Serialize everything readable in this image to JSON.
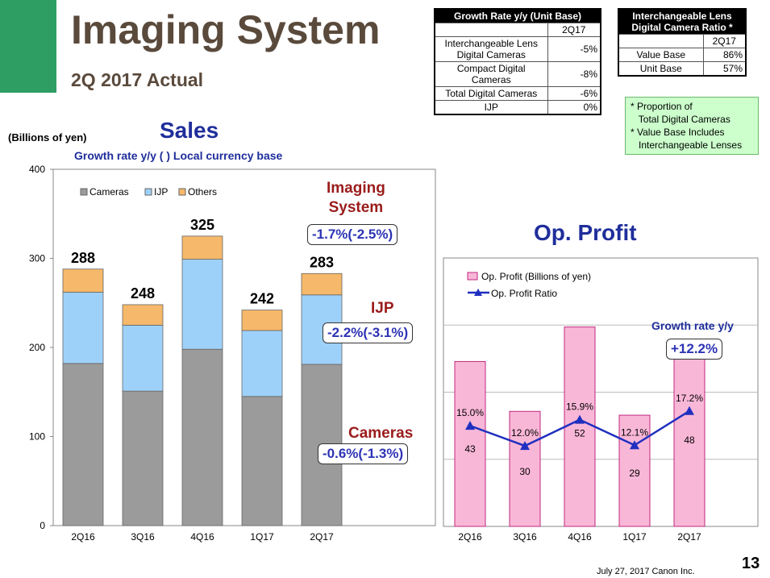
{
  "header": {
    "title": "Imaging System",
    "subtitle": "2Q 2017 Actual"
  },
  "growth_table": {
    "title": "Growth Rate y/y  (Unit Base)",
    "period": "2Q17",
    "rows": [
      {
        "label_lines": [
          "Interchangeable Lens",
          "Digital Cameras"
        ],
        "value": "-5%"
      },
      {
        "label_lines": [
          "Compact Digital",
          "Cameras"
        ],
        "value": "-8%"
      },
      {
        "label_lines": [
          "Total Digital Cameras"
        ],
        "value": "-6%"
      },
      {
        "label_lines": [
          "IJP"
        ],
        "value": "0%"
      }
    ]
  },
  "ratio_table": {
    "title_lines": [
      "Interchangeable Lens",
      "Digital Camera Ratio *"
    ],
    "period": "2Q17",
    "rows": [
      {
        "label": "Value Base",
        "value": "86%"
      },
      {
        "label": "Unit Base",
        "value": "57%"
      }
    ]
  },
  "notes": [
    "* Proportion of",
    "   Total Digital Cameras",
    "* Value Base Includes",
    "   Interchangeable Lenses"
  ],
  "sales_section": {
    "title": "Sales",
    "unit": "(Billions of yen)",
    "growth_note": "Growth rate y/y  ( ) Local currency base",
    "callouts": {
      "imaging_label_lines": [
        "Imaging",
        "System"
      ],
      "imaging_value": "-1.7%(-2.5%)",
      "ijp_label": "IJP",
      "ijp_value": "-2.2%(-3.1%)",
      "cameras_label": "Cameras",
      "cameras_value": "-0.6%(-1.3%)"
    }
  },
  "profit_section": {
    "title": "Op. Profit",
    "growth_label": "Growth rate y/y",
    "growth_value": "+12.2%"
  },
  "colors": {
    "cameras": "#9b9b9b",
    "ijp": "#9ed1fa",
    "others": "#f6b86a",
    "op_profit": "#f9b7d8",
    "op_ratio": "#1f2fbf"
  },
  "chart_data": [
    {
      "type": "bar",
      "stacked": true,
      "categories": [
        "2Q16",
        "3Q16",
        "4Q16",
        "1Q17",
        "2Q17"
      ],
      "series": [
        {
          "name": "Cameras",
          "values": [
            182,
            151,
            198,
            145,
            181
          ]
        },
        {
          "name": "IJP",
          "values": [
            80,
            74,
            101,
            74,
            78
          ]
        },
        {
          "name": "Others",
          "values": [
            26,
            23,
            26,
            23,
            24
          ]
        }
      ],
      "totals": [
        288,
        248,
        325,
        242,
        283
      ],
      "ylim": [
        0,
        400
      ],
      "yticks": [
        0,
        100,
        200,
        300,
        400
      ],
      "legend_position": "top-left",
      "grid": false
    },
    {
      "type": "bar",
      "categories": [
        "2Q16",
        "3Q16",
        "4Q16",
        "1Q17",
        "2Q17"
      ],
      "series": [
        {
          "name": "Op. Profit (Billions of yen)",
          "values": [
            43,
            30,
            52,
            29,
            48
          ]
        },
        {
          "name": "Op. Profit Ratio",
          "type": "line",
          "values": [
            15.0,
            12.0,
            15.9,
            12.1,
            17.2
          ],
          "labels": [
            "15.0%",
            "12.0%",
            "15.9%",
            "12.1%",
            "17.2%"
          ]
        }
      ],
      "legend_position": "top-left",
      "grid": true
    }
  ],
  "footer": {
    "date": "July 27, 2017 Canon Inc.",
    "page": "13"
  }
}
